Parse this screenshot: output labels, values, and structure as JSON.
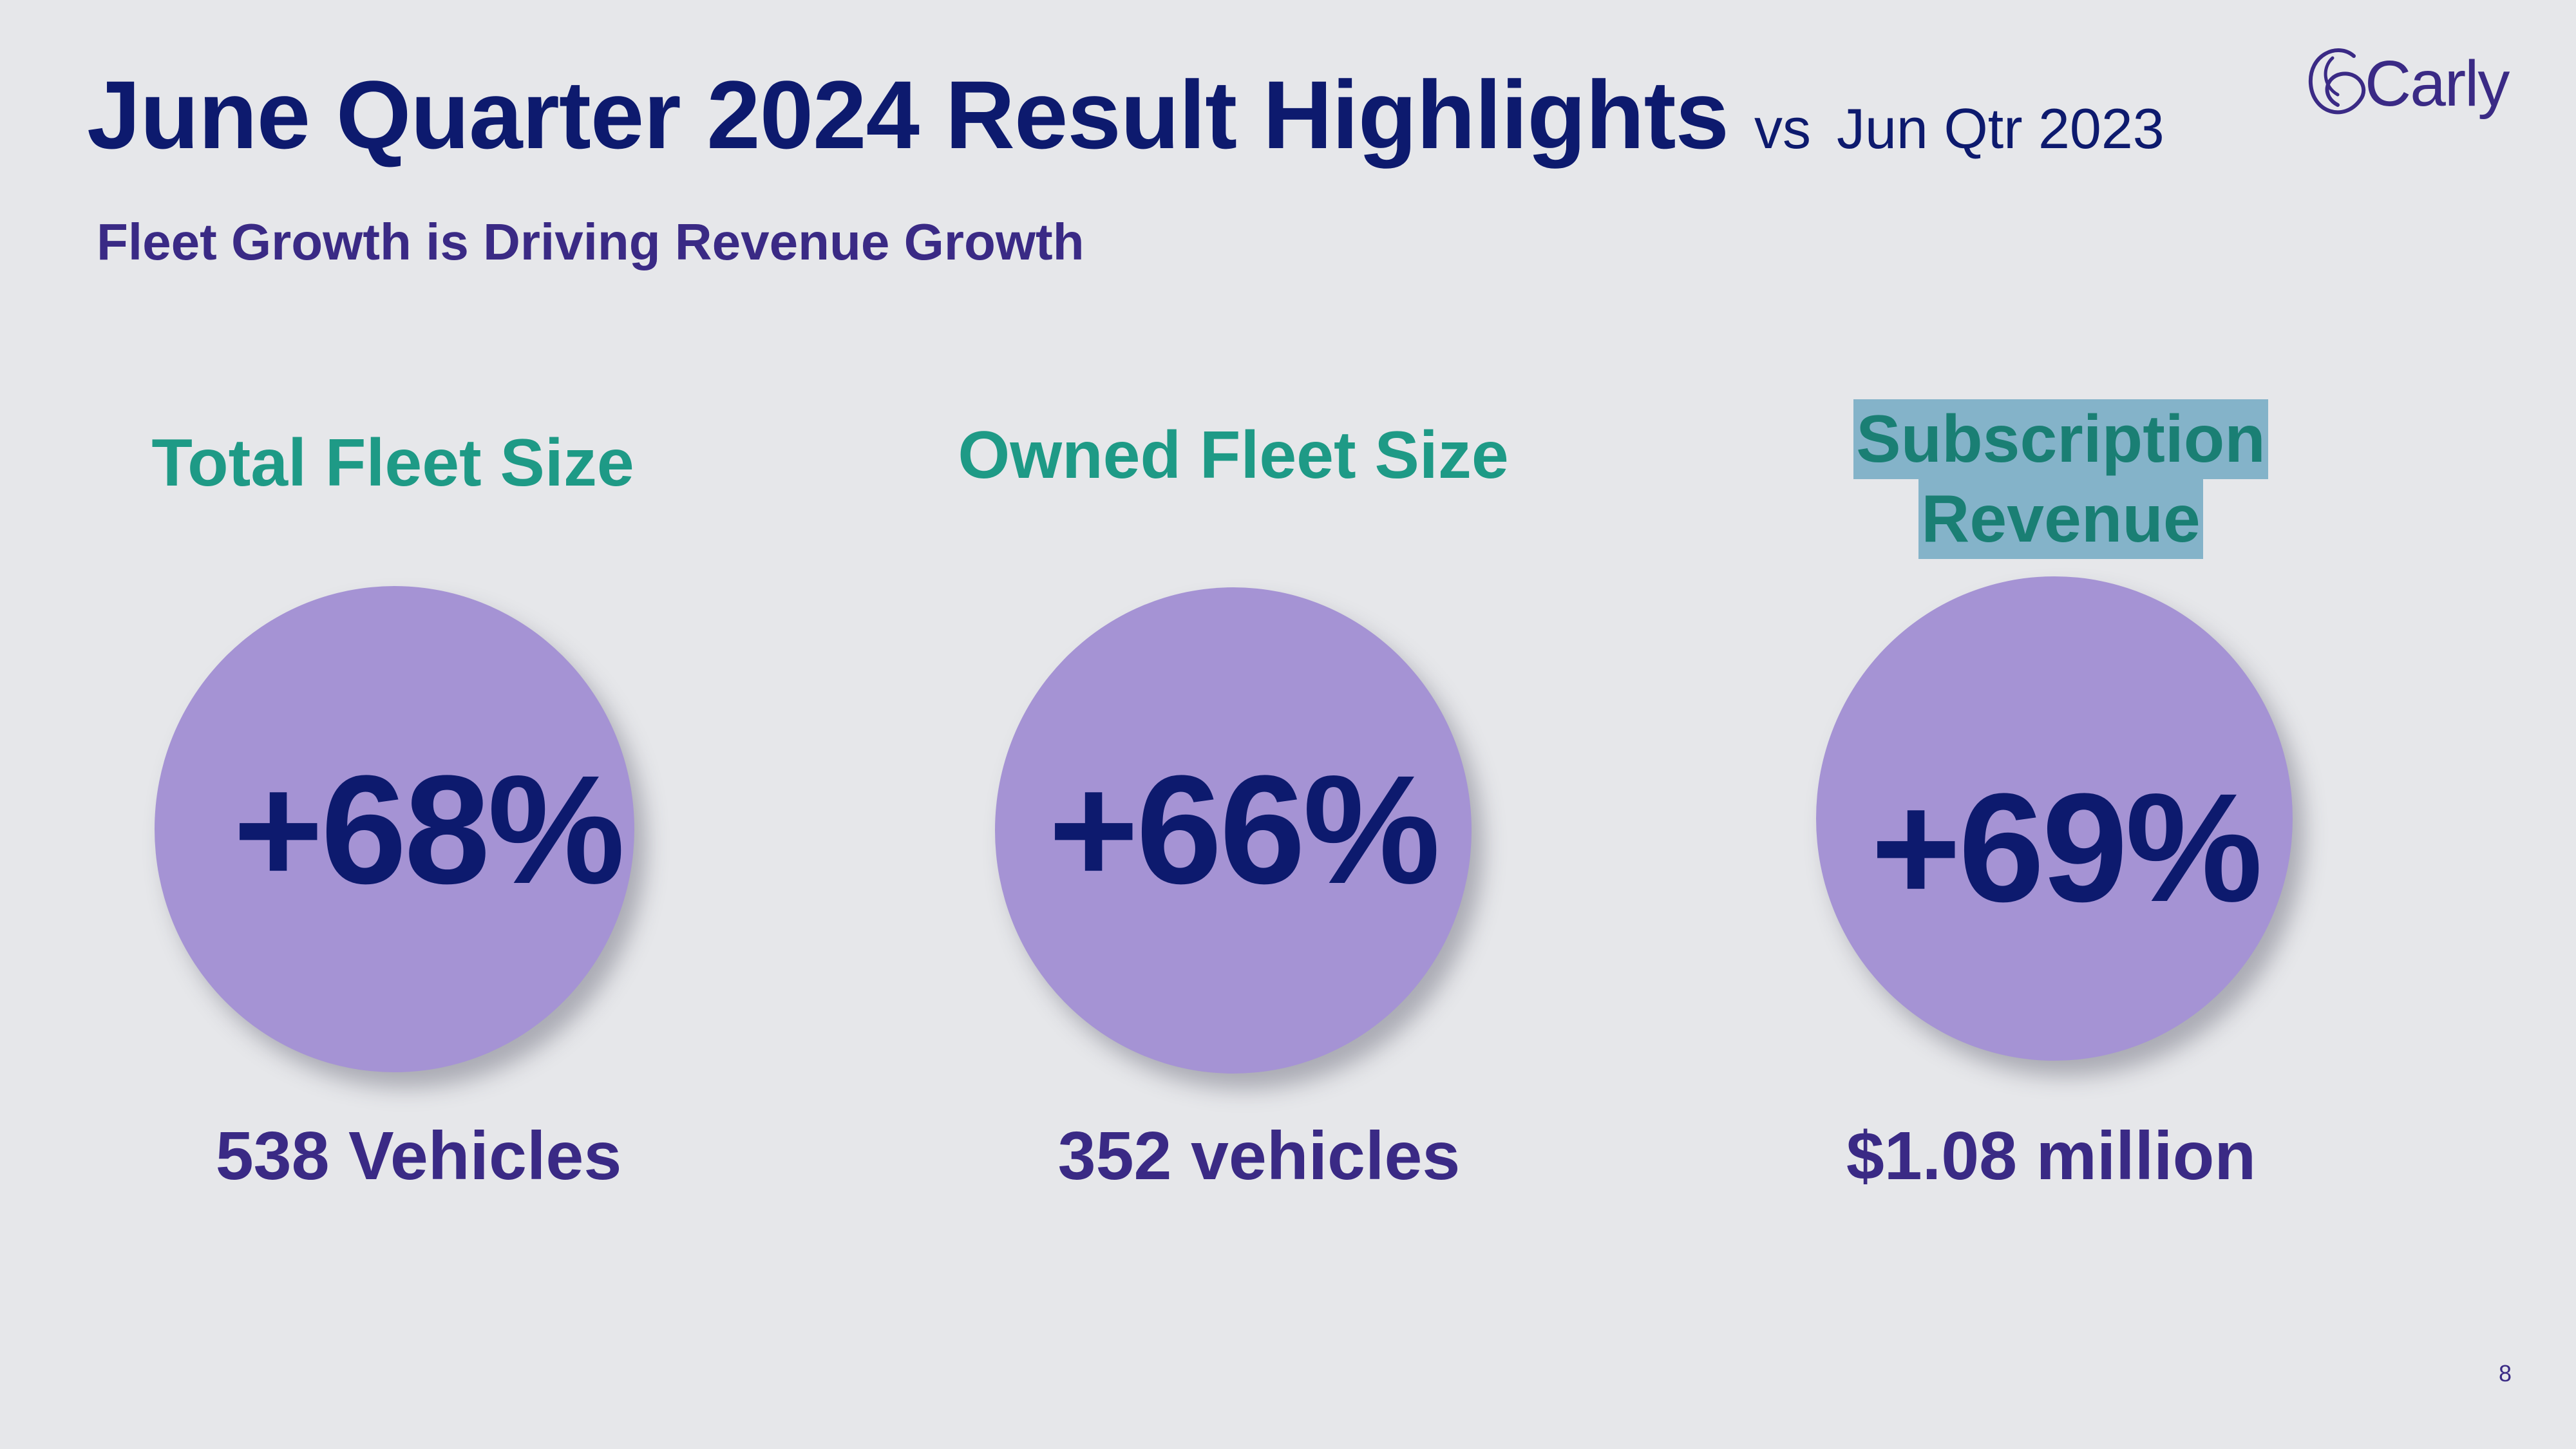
{
  "slide": {
    "title": "June Quarter 2024 Result Highlights",
    "vs_label": "vs",
    "compare_label": "Jun Qtr 2023",
    "subtitle": "Fleet Growth is Driving Revenue Growth",
    "page_number": "8"
  },
  "logo": {
    "text": "Carly",
    "icon": "carly-logo-icon"
  },
  "metrics": [
    {
      "heading": "Total Fleet Size",
      "value": "+68%",
      "detail": "538 Vehicles"
    },
    {
      "heading": "Owned Fleet Size",
      "value": "+66%",
      "detail": "352 vehicles"
    },
    {
      "heading_line1": "Subscription",
      "heading_line2": "Revenue",
      "value": "+69%",
      "detail": "$1.08 million"
    }
  ],
  "colors": {
    "background": "#e6e7ea",
    "title": "#0d1a6e",
    "subtitle": "#3a2a85",
    "heading": "#1e9a86",
    "circle": "#a593d4",
    "highlight": "#84b3c9"
  }
}
